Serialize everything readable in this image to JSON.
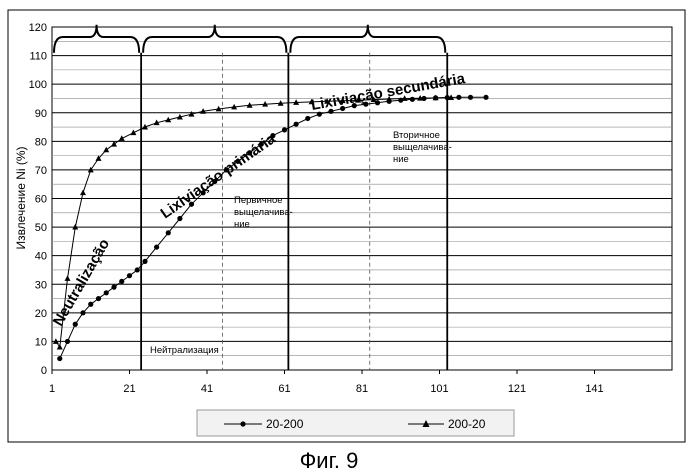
{
  "chart_data": {
    "type": "line",
    "title": "",
    "xlabel": "",
    "ylabel": "Извлечение Ni (%)",
    "xlim": [
      1,
      161
    ],
    "ylim": [
      0,
      120
    ],
    "x_ticks": [
      "1",
      "21",
      "41",
      "61",
      "81",
      "101",
      "121",
      "141"
    ],
    "y_ticks": [
      "0",
      "10",
      "20",
      "30",
      "40",
      "50",
      "60",
      "70",
      "80",
      "90",
      "100",
      "110",
      "120"
    ],
    "grid": "horizontal",
    "legend_position": "bottom",
    "series": [
      {
        "name": "20-200",
        "marker": "circle",
        "x": [
          3,
          5,
          7,
          9,
          11,
          13,
          15,
          17,
          19,
          21,
          23,
          25,
          28,
          31,
          34,
          37,
          40,
          43,
          46,
          49,
          52,
          55,
          58,
          61,
          64,
          67,
          70,
          73,
          76,
          79,
          82,
          85,
          88,
          91,
          94,
          97,
          100,
          103,
          106,
          109,
          113
        ],
        "y": [
          4,
          10,
          16,
          20,
          23,
          25,
          27,
          29,
          31,
          33,
          35,
          38,
          43,
          48,
          53,
          58,
          62,
          66,
          70,
          73,
          76,
          79,
          82,
          84,
          86,
          88,
          89.5,
          90.5,
          91.5,
          92.5,
          93,
          93.5,
          94,
          94.4,
          94.7,
          95,
          95.2,
          95.3,
          95.4,
          95.4,
          95.4
        ]
      },
      {
        "name": "200-20",
        "marker": "triangle",
        "x": [
          2,
          3,
          5,
          7,
          9,
          11,
          13,
          15,
          17,
          19,
          22,
          25,
          28,
          31,
          34,
          37,
          40,
          44,
          48,
          52,
          56,
          60,
          64,
          68,
          72,
          76,
          80,
          84,
          88,
          92,
          96,
          100,
          104
        ],
        "y": [
          10,
          8,
          32,
          50,
          62,
          70,
          74,
          77,
          79,
          81,
          83,
          85,
          86.5,
          87.5,
          88.5,
          89.5,
          90.5,
          91.3,
          92,
          92.6,
          93,
          93.3,
          93.6,
          93.8,
          94,
          94.2,
          94.4,
          94.6,
          94.8,
          95,
          95.1,
          95.2,
          95.3
        ]
      }
    ],
    "annotations": {
      "phase_neutralization": "Neutralização",
      "phase_primary": "Lixiviação primária",
      "phase_secondary": "Lixiviação secundária",
      "note_neutralization": "Нейтрализация",
      "note_primary": [
        "Первичное",
        "выщелачива-",
        "ние"
      ],
      "note_secondary": [
        "Вторичное",
        "выщелачива-",
        "ние"
      ]
    },
    "phase_boundaries_x": [
      1,
      24,
      62,
      103
    ],
    "phase_subdivisions_x": [
      45,
      83
    ]
  },
  "caption": "Фиг. 9"
}
